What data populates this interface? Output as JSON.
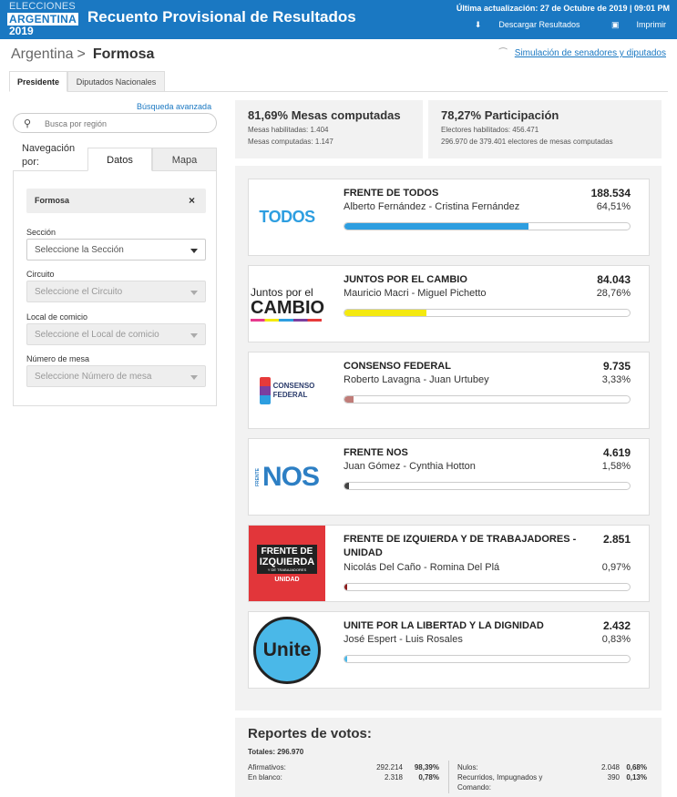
{
  "header": {
    "logo_line1": "ELECCIONES",
    "logo_line2": "ARGENTINA",
    "logo_line3": "2019",
    "title": "Recuento Provisional de Resultados",
    "updated": "Última actualización: 27 de Octubre de 2019 | 09:01 PM",
    "download_label": "Descargar Resultados",
    "print_label": "Imprimir"
  },
  "breadcrumb": {
    "root": "Argentina",
    "sep": ">",
    "current": "Formosa"
  },
  "simulation_link": "Simulación de senadores y diputados",
  "tabs": [
    {
      "label": "Presidente",
      "active": true
    },
    {
      "label": "Diputados Nacionales",
      "active": false
    }
  ],
  "sidebar": {
    "advanced_search": "Búsqueda avanzada",
    "search_placeholder": "Busca por región",
    "nav_label": "Navegación por:",
    "subtabs": {
      "datos": "Datos",
      "mapa": "Mapa"
    },
    "chip": "Formosa",
    "chip_close": "×",
    "filters": [
      {
        "label": "Sección",
        "value": "Seleccione la Sección",
        "disabled": false
      },
      {
        "label": "Circuito",
        "value": "Seleccione el Circuito",
        "disabled": true
      },
      {
        "label": "Local de comicio",
        "value": "Seleccione el Local de comicio",
        "disabled": true
      },
      {
        "label": "Número de mesa",
        "value": "Seleccione Número de mesa",
        "disabled": true
      }
    ]
  },
  "stats": {
    "mesas": {
      "title": "81,69% Mesas computadas",
      "line1": "Mesas habilitadas: 1.404",
      "line2": "Mesas computadas: 1.147"
    },
    "participacion": {
      "title": "78,27% Participación",
      "line1": "Electores habilitados: 456.471",
      "line2": "296.970 de 379.401 electores de mesas computadas"
    }
  },
  "parties": [
    {
      "name": "FRENTE DE TODOS",
      "candidates": "Alberto Fernández - Cristina Fernández",
      "votes": "188.534",
      "pct": "64,51%",
      "share": 0.6451,
      "color": "#2d9ee0",
      "logo": "TODOS"
    },
    {
      "name": "JUNTOS POR EL CAMBIO",
      "candidates": "Mauricio Macri - Miguel Pichetto",
      "votes": "84.043",
      "pct": "28,76%",
      "share": 0.2876,
      "color": "#f4e90f",
      "logo_a": "Juntos por el",
      "logo_b": "CAMBIO"
    },
    {
      "name": "CONSENSO FEDERAL",
      "candidates": "Roberto Lavagna - Juan Urtubey",
      "votes": "9.735",
      "pct": "3,33%",
      "share": 0.0333,
      "color": "#c07c78",
      "logo_a": "CONSENSO",
      "logo_b": "FEDERAL"
    },
    {
      "name": "FRENTE NOS",
      "candidates": "Juan Gómez - Cynthia Hotton",
      "votes": "4.619",
      "pct": "1,58%",
      "share": 0.0158,
      "color": "#444444",
      "logo_a": "FRENTE",
      "logo_b": "NOS"
    },
    {
      "name": "FRENTE DE IZQUIERDA Y DE TRABAJADORES - UNIDAD",
      "candidates": "Nicolás Del Caño - Romina Del Plá",
      "votes": "2.851",
      "pct": "0,97%",
      "share": 0.0097,
      "color": "#8b1a1a",
      "logo_a": "FRENTE DE",
      "logo_b": "IZQUIERDA",
      "logo_c": "Y DE TRABAJADORES",
      "logo_d": "UNIDAD"
    },
    {
      "name": "UNITE POR LA LIBERTAD Y LA DIGNIDAD",
      "candidates": "José Espert - Luis Rosales",
      "votes": "2.432",
      "pct": "0,83%",
      "share": 0.0083,
      "color": "#4ab8e8",
      "logo": "Unite"
    }
  ],
  "reports": {
    "title": "Reportes de votos:",
    "total": "Totales: 296.970",
    "left": [
      {
        "label": "Afirmativos:",
        "num": "292.214",
        "pct": "98,39%"
      },
      {
        "label": "En blanco:",
        "num": "2.318",
        "pct": "0,78%"
      }
    ],
    "right": [
      {
        "label": "Nulos:",
        "num": "2.048",
        "pct": "0,68%"
      },
      {
        "label": "Recurridos, Impugnados y",
        "label2": "Comando:",
        "num": "390",
        "pct": "0,13%"
      }
    ]
  }
}
